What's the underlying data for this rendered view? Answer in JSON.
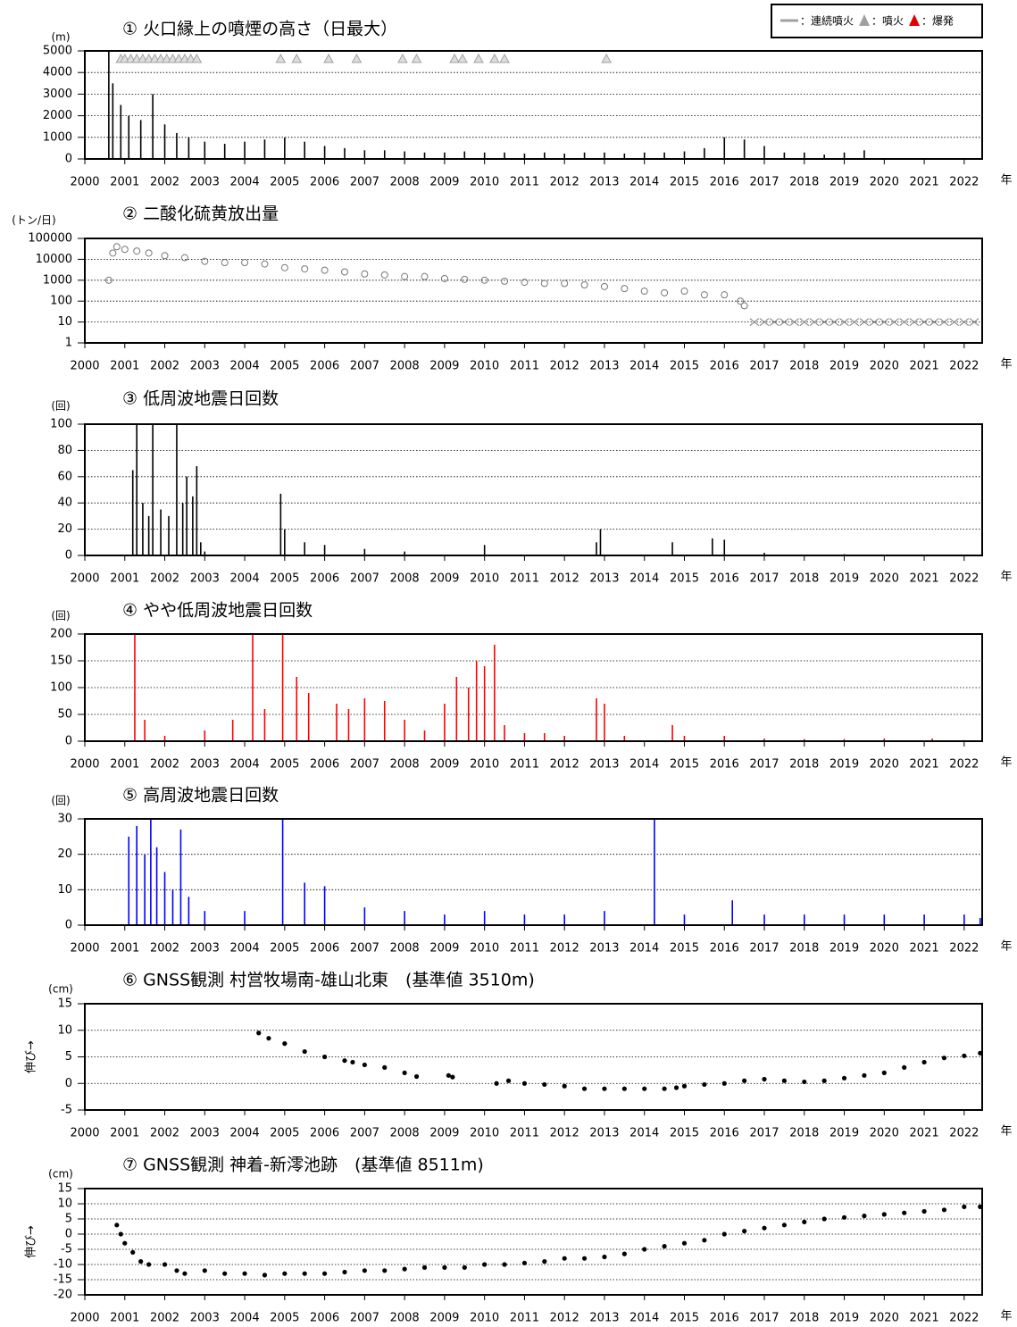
{
  "chart_data": [
    {
      "type": "bar",
      "title": "① 火口縁上の噴煙の高さ（日最大）",
      "y_unit": "(m)",
      "x_unit": "年",
      "color": "#000000",
      "grid": true,
      "xlim": [
        2000,
        2022.45
      ],
      "xticks": [
        2000,
        2001,
        2002,
        2003,
        2004,
        2005,
        2006,
        2007,
        2008,
        2009,
        2010,
        2011,
        2012,
        2013,
        2014,
        2015,
        2016,
        2017,
        2018,
        2019,
        2020,
        2021,
        2022
      ],
      "ylim": [
        0,
        5000
      ],
      "yticks": [
        0,
        1000,
        2000,
        3000,
        4000,
        5000
      ],
      "x": [
        2000.6,
        2000.7,
        2000.9,
        2001.1,
        2001.4,
        2001.7,
        2002.0,
        2002.3,
        2002.6,
        2003.0,
        2003.5,
        2004.0,
        2004.5,
        2005.0,
        2005.5,
        2006.0,
        2006.5,
        2007.0,
        2007.5,
        2008.0,
        2008.5,
        2009.0,
        2009.5,
        2010.0,
        2010.5,
        2011.0,
        2011.5,
        2012.0,
        2012.5,
        2013.0,
        2013.5,
        2014.0,
        2014.5,
        2015.0,
        2015.5,
        2016.0,
        2016.5,
        2017.0,
        2017.5,
        2018.0,
        2018.5,
        2019.0,
        2019.5
      ],
      "values": [
        5000,
        3500,
        2500,
        2000,
        1800,
        3000,
        1600,
        1200,
        1000,
        800,
        700,
        800,
        900,
        1000,
        800,
        600,
        500,
        400,
        400,
        350,
        300,
        300,
        350,
        300,
        300,
        250,
        300,
        250,
        300,
        300,
        250,
        300,
        300,
        350,
        500,
        1000,
        900,
        600,
        300,
        300,
        200,
        300,
        400
      ],
      "eruptions": {
        "x": [
          2000.9,
          2001.0,
          2001.15,
          2001.3,
          2001.45,
          2001.6,
          2001.75,
          2001.9,
          2002.05,
          2002.2,
          2002.35,
          2002.5,
          2002.65,
          2002.8,
          2004.9,
          2005.3,
          2006.1,
          2006.8,
          2007.95,
          2008.3,
          2009.25,
          2009.45,
          2009.85,
          2010.25,
          2010.5,
          2013.05
        ]
      },
      "legend": [
        {
          "label": "：連続噴火",
          "color": "#a0a0a0",
          "symbol": "line"
        },
        {
          "label": "：噴火",
          "color": "#a0a0a0",
          "symbol": "triangle"
        },
        {
          "label": "：爆発",
          "color": "#e00000",
          "symbol": "triangle"
        }
      ]
    },
    {
      "type": "scatter",
      "title": "② 二酸化硫黄放出量",
      "y_unit": "(トン/日)",
      "x_unit": "年",
      "grid": true,
      "log_scale": true,
      "xlim": [
        2000,
        2022.45
      ],
      "xticks": [
        2000,
        2001,
        2002,
        2003,
        2004,
        2005,
        2006,
        2007,
        2008,
        2009,
        2010,
        2011,
        2012,
        2013,
        2014,
        2015,
        2016,
        2017,
        2018,
        2019,
        2020,
        2021,
        2022
      ],
      "ylim": [
        1,
        100000
      ],
      "yticks": [
        1,
        10,
        100,
        1000,
        10000,
        100000
      ],
      "series": [
        {
          "marker": "circle",
          "color": "#777777",
          "x": [
            2000.6,
            2000.7,
            2000.8,
            2001.0,
            2001.3,
            2001.6,
            2002.0,
            2002.5,
            2003.0,
            2003.5,
            2004.0,
            2004.5,
            2005.0,
            2005.5,
            2006.0,
            2006.5,
            2007.0,
            2007.5,
            2008.0,
            2008.5,
            2009.0,
            2009.5,
            2010.0,
            2010.5,
            2011.0,
            2011.5,
            2012.0,
            2012.5,
            2013.0,
            2013.5,
            2014.0,
            2014.5,
            2015.0,
            2015.5,
            2016.0,
            2016.4,
            2016.5
          ],
          "values": [
            1000,
            20000,
            40000,
            30000,
            25000,
            20000,
            15000,
            12000,
            8000,
            7000,
            7000,
            6000,
            4000,
            3500,
            3000,
            2500,
            2000,
            1800,
            1500,
            1500,
            1200,
            1100,
            1000,
            900,
            800,
            700,
            700,
            600,
            500,
            400,
            300,
            250,
            300,
            200,
            200,
            100,
            60
          ]
        },
        {
          "marker": "x",
          "color": "#777777",
          "x": [
            2016.75,
            2017.0,
            2017.25,
            2017.5,
            2017.75,
            2018.0,
            2018.25,
            2018.5,
            2018.75,
            2019.0,
            2019.25,
            2019.5,
            2019.75,
            2020.0,
            2020.25,
            2020.5,
            2020.75,
            2021.0,
            2021.25,
            2021.5,
            2021.75,
            2022.0,
            2022.25
          ],
          "values": [
            10,
            10,
            10,
            10,
            10,
            10,
            10,
            10,
            10,
            10,
            10,
            10,
            10,
            10,
            10,
            10,
            10,
            10,
            10,
            10,
            10,
            10,
            10
          ]
        }
      ]
    },
    {
      "type": "bar",
      "title": "③ 低周波地震日回数",
      "y_unit": "(回)",
      "x_unit": "年",
      "color": "#000000",
      "grid": true,
      "xlim": [
        2000,
        2022.45
      ],
      "xticks": [
        2000,
        2001,
        2002,
        2003,
        2004,
        2005,
        2006,
        2007,
        2008,
        2009,
        2010,
        2011,
        2012,
        2013,
        2014,
        2015,
        2016,
        2017,
        2018,
        2019,
        2020,
        2021,
        2022
      ],
      "ylim": [
        0,
        100
      ],
      "yticks": [
        0,
        20,
        40,
        60,
        80,
        100
      ],
      "x": [
        2001.2,
        2001.3,
        2001.45,
        2001.6,
        2001.7,
        2001.9,
        2002.1,
        2002.3,
        2002.45,
        2002.55,
        2002.7,
        2002.8,
        2002.9,
        2003.0,
        2004.9,
        2005.0,
        2005.5,
        2006.0,
        2007.0,
        2008.0,
        2010.0,
        2012.8,
        2012.9,
        2014.7,
        2015.7,
        2016.0,
        2017.0,
        2019.0
      ],
      "values": [
        65,
        100,
        40,
        30,
        100,
        35,
        30,
        100,
        40,
        60,
        45,
        68,
        10,
        3,
        47,
        20,
        10,
        8,
        5,
        3,
        8,
        10,
        20,
        10,
        13,
        12,
        2,
        1
      ]
    },
    {
      "type": "bar",
      "title": "④ やや低周波地震日回数",
      "y_unit": "(回)",
      "x_unit": "年",
      "color": "#ff0000",
      "grid": true,
      "xlim": [
        2000,
        2022.45
      ],
      "xticks": [
        2000,
        2001,
        2002,
        2003,
        2004,
        2005,
        2006,
        2007,
        2008,
        2009,
        2010,
        2011,
        2012,
        2013,
        2014,
        2015,
        2016,
        2017,
        2018,
        2019,
        2020,
        2021,
        2022
      ],
      "ylim": [
        0,
        200
      ],
      "yticks": [
        0,
        50,
        100,
        150,
        200
      ],
      "x": [
        2001.25,
        2001.5,
        2002.0,
        2003.0,
        2003.7,
        2004.2,
        2004.5,
        2004.95,
        2005.3,
        2005.6,
        2006.3,
        2006.6,
        2007.0,
        2007.5,
        2008.0,
        2008.5,
        2009.0,
        2009.3,
        2009.6,
        2009.8,
        2010.0,
        2010.25,
        2010.5,
        2011.0,
        2011.5,
        2012.0,
        2012.8,
        2013.0,
        2013.5,
        2014.7,
        2015.0,
        2016.0,
        2017.0,
        2018.0,
        2019.0,
        2020.0,
        2021.2,
        2022.0
      ],
      "values": [
        200,
        40,
        10,
        20,
        40,
        200,
        60,
        200,
        120,
        90,
        70,
        60,
        80,
        75,
        40,
        20,
        70,
        120,
        100,
        150,
        140,
        180,
        30,
        15,
        15,
        10,
        80,
        70,
        10,
        30,
        10,
        10,
        5,
        4,
        4,
        5,
        5,
        2
      ]
    },
    {
      "type": "bar",
      "title": "⑤ 高周波地震日回数",
      "y_unit": "(回)",
      "x_unit": "年",
      "color": "#0000ff",
      "grid": true,
      "xlim": [
        2000,
        2022.45
      ],
      "xticks": [
        2000,
        2001,
        2002,
        2003,
        2004,
        2005,
        2006,
        2007,
        2008,
        2009,
        2010,
        2011,
        2012,
        2013,
        2014,
        2015,
        2016,
        2017,
        2018,
        2019,
        2020,
        2021,
        2022
      ],
      "ylim": [
        0,
        30
      ],
      "yticks": [
        0,
        10,
        20,
        30
      ],
      "x": [
        2001.1,
        2001.3,
        2001.5,
        2001.65,
        2001.8,
        2002.0,
        2002.2,
        2002.4,
        2002.6,
        2003.0,
        2004.0,
        2004.95,
        2005.5,
        2006.0,
        2007.0,
        2008.0,
        2009.0,
        2010.0,
        2011.0,
        2012.0,
        2013.0,
        2014.25,
        2015.0,
        2016.2,
        2017.0,
        2018.0,
        2019.0,
        2020.0,
        2021.0,
        2022.0,
        2022.4
      ],
      "values": [
        25,
        28,
        20,
        30,
        22,
        15,
        10,
        27,
        8,
        4,
        4,
        30,
        12,
        11,
        5,
        4,
        3,
        4,
        3,
        3,
        4,
        30,
        3,
        7,
        3,
        3,
        3,
        3,
        3,
        3,
        2
      ]
    },
    {
      "type": "scatter",
      "title": "⑥ GNSS観測 村営牧場南-雄山北東　(基準値 3510m)",
      "y_unit": "(cm)",
      "y_axis_label": "伸び→",
      "x_unit": "年",
      "grid": true,
      "xlim": [
        2000,
        2022.45
      ],
      "xticks": [
        2000,
        2001,
        2002,
        2003,
        2004,
        2005,
        2006,
        2007,
        2008,
        2009,
        2010,
        2011,
        2012,
        2013,
        2014,
        2015,
        2016,
        2017,
        2018,
        2019,
        2020,
        2021,
        2022
      ],
      "ylim": [
        -5,
        15
      ],
      "yticks": [
        -5,
        0,
        5,
        10,
        15
      ],
      "series": [
        {
          "marker": "dot",
          "color": "#000000",
          "x": [
            2004.35,
            2004.6,
            2005.0,
            2005.5,
            2006.0,
            2006.5,
            2006.7,
            2007.0,
            2007.5,
            2008.0,
            2008.3,
            2009.1,
            2009.2,
            2010.3,
            2010.6,
            2011.0,
            2011.5,
            2012.0,
            2012.5,
            2013.0,
            2013.5,
            2014.0,
            2014.5,
            2014.8,
            2015.0,
            2015.5,
            2016.0,
            2016.5,
            2017.0,
            2017.5,
            2018.0,
            2018.5,
            2019.0,
            2019.5,
            2020.0,
            2020.5,
            2021.0,
            2021.5,
            2022.0,
            2022.4
          ],
          "values": [
            9.5,
            8.5,
            7.5,
            6,
            5,
            4.3,
            4,
            3.5,
            3,
            2,
            1.3,
            1.5,
            1.2,
            0,
            0.5,
            0,
            -0.2,
            -0.5,
            -1,
            -1,
            -1,
            -1,
            -1,
            -0.8,
            -0.5,
            -0.2,
            0,
            0.5,
            0.8,
            0.5,
            0.3,
            0.5,
            1,
            1.5,
            2,
            3,
            4,
            4.8,
            5.2,
            5.7
          ]
        }
      ]
    },
    {
      "type": "scatter",
      "title": "⑦ GNSS観測 神着-新澪池跡　(基準値 8511m)",
      "y_unit": "(cm)",
      "y_axis_label": "伸び→",
      "x_unit": "年",
      "grid": true,
      "xlim": [
        2000,
        2022.45
      ],
      "xticks": [
        2000,
        2001,
        2002,
        2003,
        2004,
        2005,
        2006,
        2007,
        2008,
        2009,
        2010,
        2011,
        2012,
        2013,
        2014,
        2015,
        2016,
        2017,
        2018,
        2019,
        2020,
        2021,
        2022
      ],
      "ylim": [
        -20,
        15
      ],
      "yticks": [
        -20,
        -15,
        -10,
        -5,
        0,
        5,
        10,
        15
      ],
      "series": [
        {
          "marker": "dot",
          "color": "#000000",
          "x": [
            2000.8,
            2000.9,
            2001.0,
            2001.2,
            2001.4,
            2001.6,
            2002.0,
            2002.3,
            2002.5,
            2003.0,
            2003.5,
            2004.0,
            2004.5,
            2005.0,
            2005.5,
            2006.0,
            2006.5,
            2007.0,
            2007.5,
            2008.0,
            2008.5,
            2009.0,
            2009.5,
            2010.0,
            2010.5,
            2011.0,
            2011.5,
            2012.0,
            2012.5,
            2013.0,
            2013.5,
            2014.0,
            2014.5,
            2015.0,
            2015.5,
            2016.0,
            2016.5,
            2017.0,
            2017.5,
            2018.0,
            2018.5,
            2019.0,
            2019.5,
            2020.0,
            2020.5,
            2021.0,
            2021.5,
            2022.0,
            2022.4
          ],
          "values": [
            3,
            0,
            -3,
            -6,
            -9,
            -10,
            -10,
            -12,
            -13,
            -12,
            -13,
            -13,
            -13.5,
            -13,
            -13,
            -13,
            -12.5,
            -12,
            -12,
            -11.5,
            -11,
            -11,
            -11,
            -10,
            -10,
            -9.5,
            -9,
            -8,
            -8,
            -7.5,
            -6.5,
            -5,
            -4,
            -3,
            -2,
            0,
            1,
            2,
            3,
            4,
            5,
            5.5,
            6,
            6.5,
            7,
            7.5,
            8,
            9,
            9
          ]
        }
      ]
    }
  ]
}
